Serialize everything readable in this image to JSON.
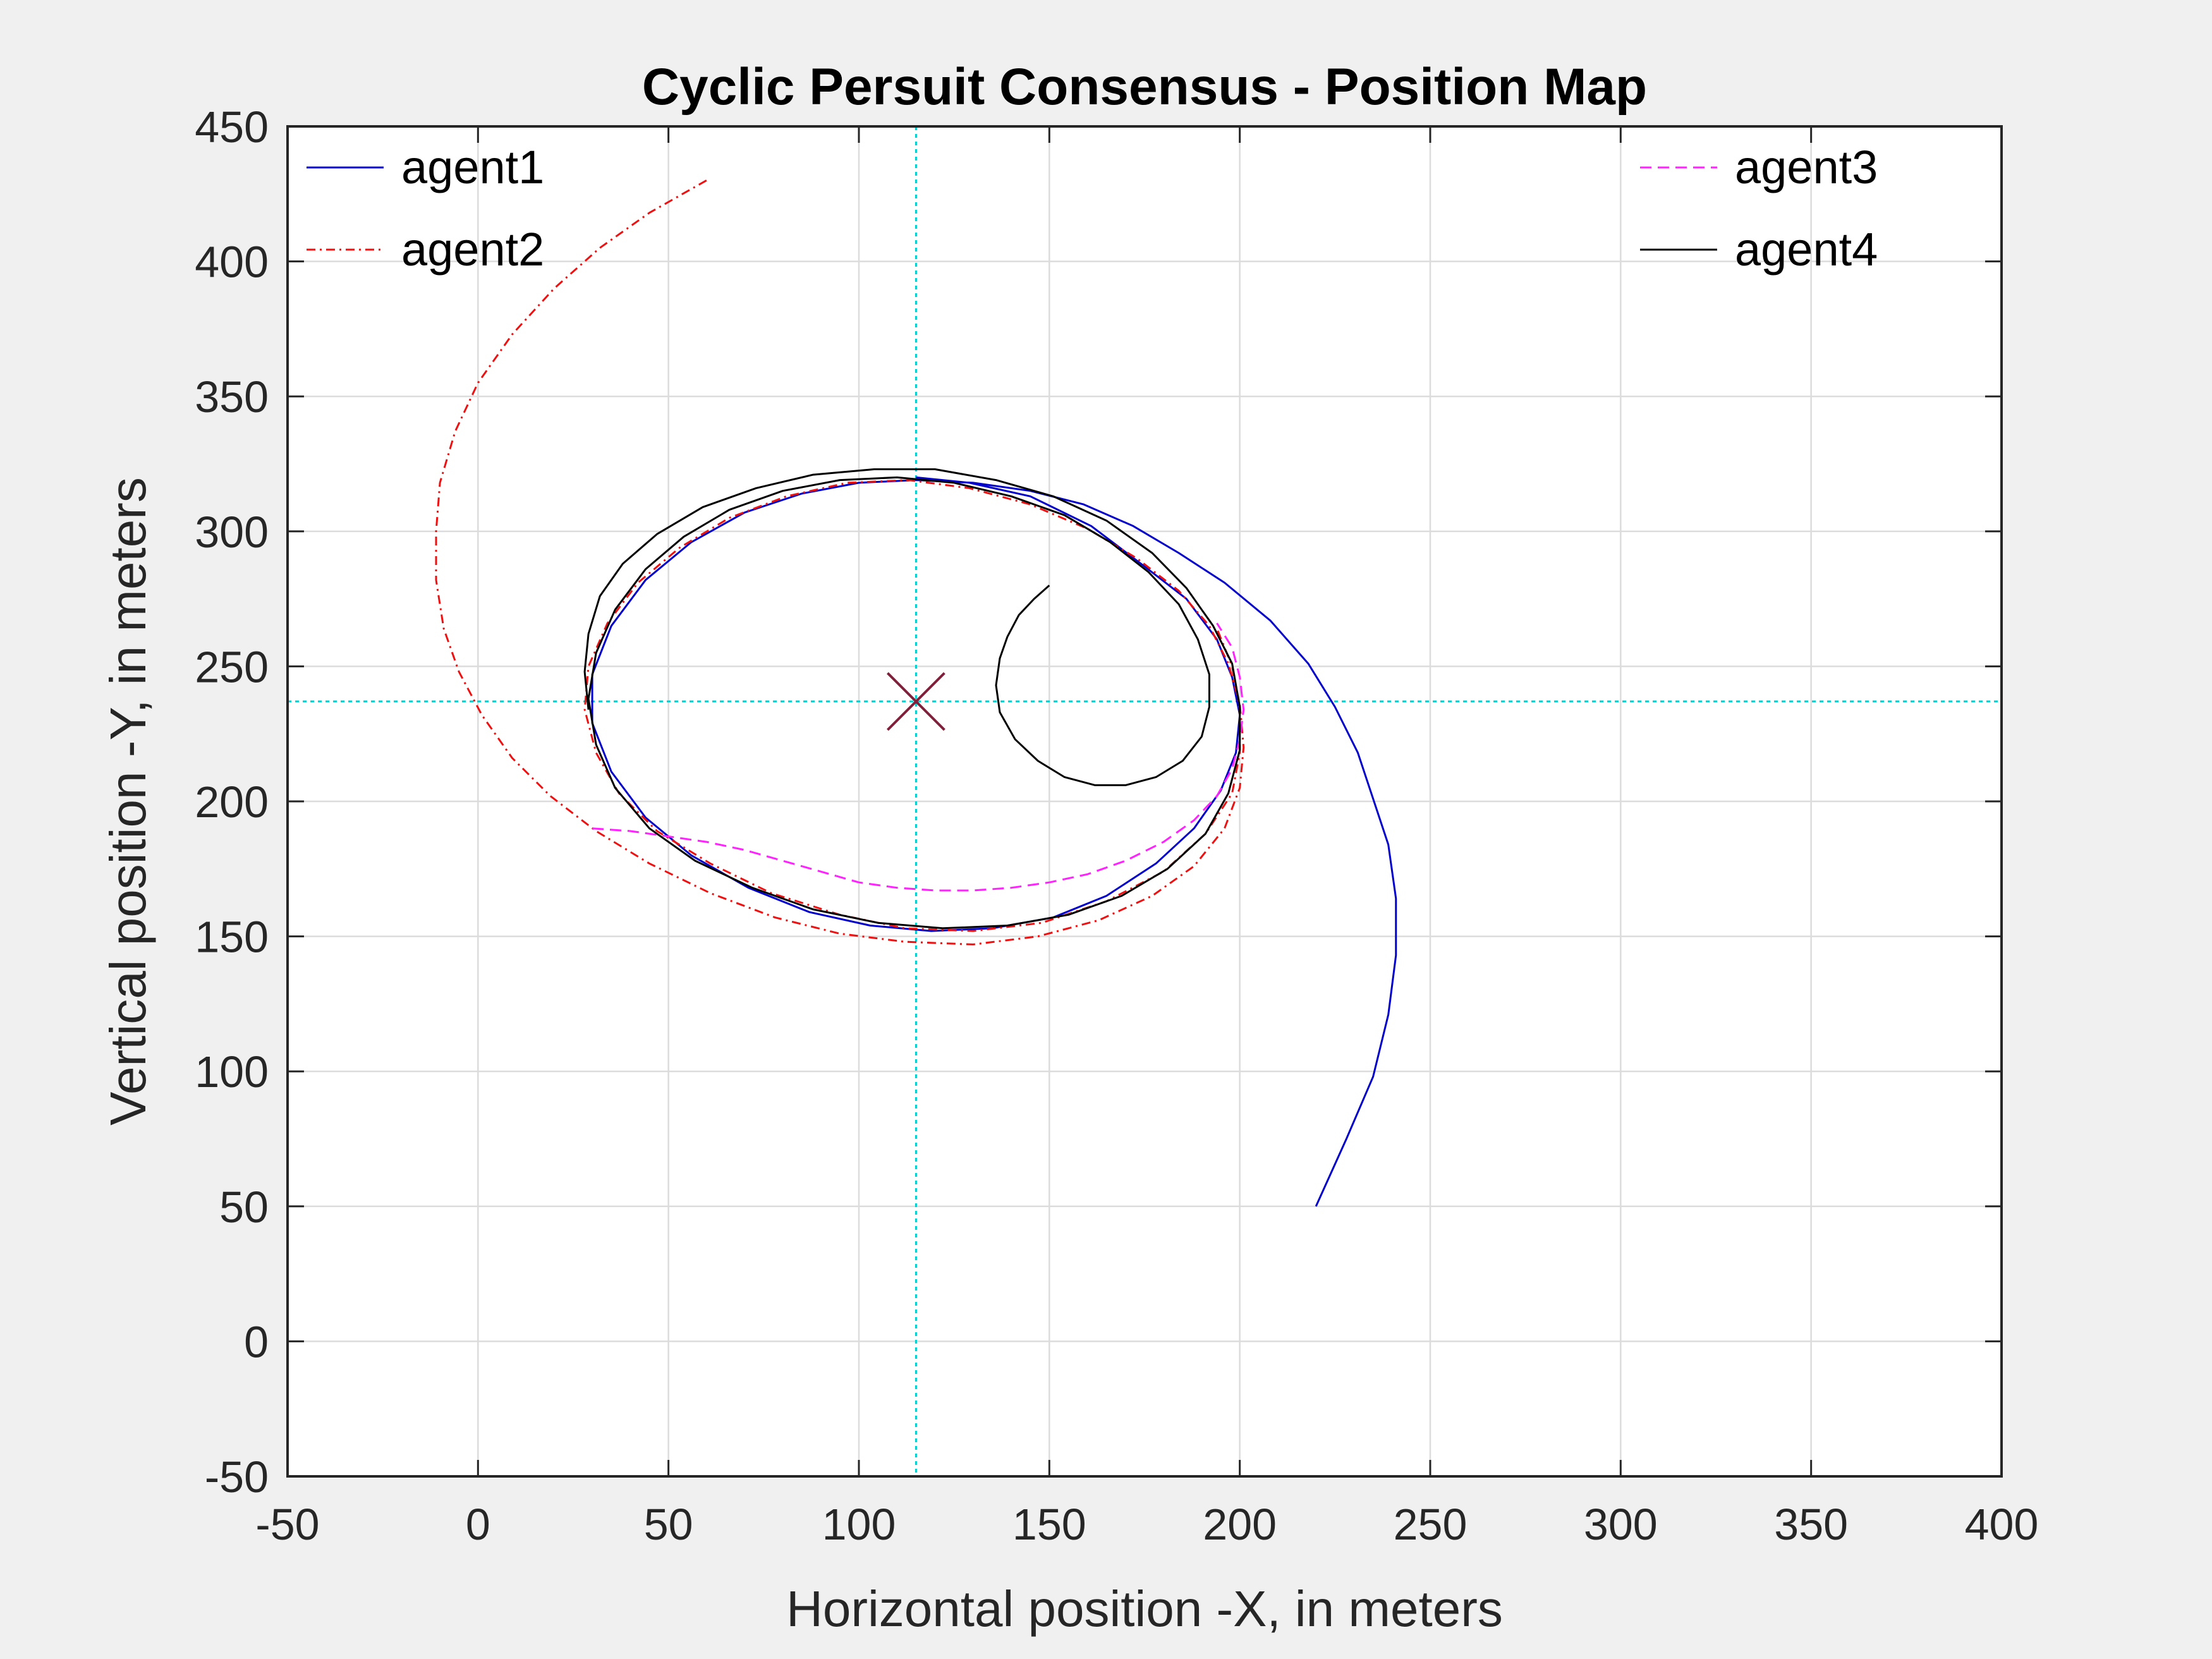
{
  "chart_data": {
    "type": "line",
    "title": "Cyclic Persuit Consensus - Position Map",
    "xlabel": "Horizontal position -X, in meters",
    "ylabel": "Vertical position -Y, in meters",
    "xlim": [
      -50,
      400
    ],
    "ylim": [
      -50,
      450
    ],
    "xticks": [
      -50,
      0,
      50,
      100,
      150,
      200,
      250,
      300,
      350,
      400
    ],
    "yticks": [
      -50,
      0,
      50,
      100,
      150,
      200,
      250,
      300,
      350,
      400,
      450
    ],
    "grid": true,
    "legend_left": [
      "agent1",
      "agent2"
    ],
    "legend_right": [
      "agent3",
      "agent4"
    ],
    "consensus_point": {
      "x": 115,
      "y": 237,
      "marker": "x",
      "color": "#7f1f3a"
    },
    "crosshair_color": "#00d0d0",
    "series": [
      {
        "name": "agent1",
        "color": "#0000cc",
        "dash": "solid",
        "points": [
          [
            220,
            50
          ],
          [
            228,
            75
          ],
          [
            235,
            98
          ],
          [
            239,
            121
          ],
          [
            241,
            143
          ],
          [
            241,
            164
          ],
          [
            239,
            184
          ],
          [
            235,
            201
          ],
          [
            231,
            218
          ],
          [
            225,
            235
          ],
          [
            218,
            251
          ],
          [
            208,
            267
          ],
          [
            196,
            281
          ],
          [
            184,
            292
          ],
          [
            172,
            302
          ],
          [
            159,
            310
          ],
          [
            145,
            315
          ],
          [
            130,
            318
          ],
          [
            115,
            319
          ],
          [
            100,
            318
          ],
          [
            85,
            314
          ],
          [
            70,
            307
          ],
          [
            56,
            296
          ],
          [
            44,
            282
          ],
          [
            35,
            265
          ],
          [
            30,
            247
          ],
          [
            30,
            229
          ],
          [
            35,
            211
          ],
          [
            44,
            194
          ],
          [
            56,
            180
          ],
          [
            71,
            168
          ],
          [
            87,
            159
          ],
          [
            103,
            154
          ],
          [
            119,
            152
          ],
          [
            135,
            153
          ],
          [
            151,
            157
          ],
          [
            165,
            165
          ],
          [
            178,
            177
          ],
          [
            188,
            190
          ],
          [
            195,
            204
          ],
          [
            199,
            218
          ],
          [
            200,
            232
          ],
          [
            198,
            246
          ],
          [
            194,
            260
          ],
          [
            186,
            275
          ],
          [
            175,
            287
          ],
          [
            161,
            302
          ],
          [
            145,
            313
          ],
          [
            129,
            318
          ],
          [
            115,
            320
          ]
        ]
      },
      {
        "name": "agent2",
        "color": "#ee1111",
        "dash": "dashdot",
        "points": [
          [
            60,
            430
          ],
          [
            45,
            418
          ],
          [
            32,
            405
          ],
          [
            20,
            390
          ],
          [
            9,
            373
          ],
          [
            0,
            355
          ],
          [
            -6,
            337
          ],
          [
            -10,
            318
          ],
          [
            -11,
            300
          ],
          [
            -11,
            282
          ],
          [
            -9,
            264
          ],
          [
            -5,
            248
          ],
          [
            1,
            232
          ],
          [
            9,
            216
          ],
          [
            19,
            202
          ],
          [
            31,
            189
          ],
          [
            45,
            177
          ],
          [
            61,
            166
          ],
          [
            78,
            157
          ],
          [
            95,
            151
          ],
          [
            112,
            148
          ],
          [
            130,
            147
          ],
          [
            147,
            150
          ],
          [
            163,
            156
          ],
          [
            177,
            165
          ],
          [
            188,
            176
          ],
          [
            196,
            190
          ],
          [
            200,
            205
          ],
          [
            201,
            220
          ],
          [
            200,
            236
          ],
          [
            197,
            251
          ],
          [
            192,
            265
          ],
          [
            184,
            278
          ],
          [
            173,
            290
          ],
          [
            160,
            301
          ],
          [
            145,
            310
          ],
          [
            129,
            316
          ],
          [
            113,
            319
          ],
          [
            97,
            318
          ],
          [
            81,
            313
          ],
          [
            66,
            305
          ],
          [
            53,
            294
          ],
          [
            42,
            281
          ],
          [
            34,
            266
          ],
          [
            29,
            250
          ],
          [
            28,
            234
          ],
          [
            31,
            218
          ],
          [
            37,
            203
          ],
          [
            47,
            189
          ],
          [
            61,
            177
          ],
          [
            77,
            166
          ],
          [
            95,
            158
          ],
          [
            112,
            153
          ],
          [
            130,
            152
          ],
          [
            148,
            155
          ],
          [
            165,
            163
          ],
          [
            180,
            174
          ],
          [
            191,
            188
          ],
          [
            198,
            203
          ],
          [
            200,
            218
          ],
          [
            200,
            234
          ],
          [
            198,
            250
          ],
          [
            194,
            264
          ]
        ]
      },
      {
        "name": "agent3",
        "color": "#ff22ff",
        "dash": "dashed",
        "points": [
          [
            30,
            190
          ],
          [
            40,
            189
          ],
          [
            50,
            187
          ],
          [
            60,
            185
          ],
          [
            70,
            182
          ],
          [
            80,
            178
          ],
          [
            90,
            174
          ],
          [
            100,
            170
          ],
          [
            110,
            168
          ],
          [
            120,
            167
          ],
          [
            130,
            167
          ],
          [
            140,
            168
          ],
          [
            150,
            170
          ],
          [
            160,
            173
          ],
          [
            170,
            178
          ],
          [
            180,
            185
          ],
          [
            188,
            193
          ],
          [
            194,
            202
          ],
          [
            198,
            212
          ],
          [
            200,
            223
          ],
          [
            201,
            234
          ],
          [
            200,
            246
          ],
          [
            198,
            257
          ],
          [
            194,
            266
          ]
        ]
      },
      {
        "name": "agent4",
        "color": "#000000",
        "dash": "solid",
        "points": [
          [
            150,
            280
          ],
          [
            146,
            275
          ],
          [
            142,
            269
          ],
          [
            139,
            261
          ],
          [
            137,
            253
          ],
          [
            136,
            243
          ],
          [
            137,
            233
          ],
          [
            141,
            223
          ],
          [
            147,
            215
          ],
          [
            154,
            209
          ],
          [
            162,
            206
          ],
          [
            170,
            206
          ],
          [
            178,
            209
          ],
          [
            185,
            215
          ],
          [
            190,
            224
          ],
          [
            192,
            235
          ],
          [
            192,
            247
          ],
          [
            189,
            260
          ],
          [
            184,
            273
          ],
          [
            176,
            285
          ],
          [
            166,
            296
          ],
          [
            154,
            306
          ],
          [
            140,
            313
          ],
          [
            125,
            318
          ],
          [
            110,
            320
          ],
          [
            95,
            319
          ],
          [
            80,
            315
          ],
          [
            66,
            308
          ],
          [
            54,
            298
          ],
          [
            44,
            286
          ],
          [
            36,
            271
          ],
          [
            31,
            255
          ],
          [
            29,
            238
          ],
          [
            31,
            221
          ],
          [
            36,
            205
          ],
          [
            45,
            190
          ],
          [
            57,
            178
          ],
          [
            72,
            168
          ],
          [
            88,
            160
          ],
          [
            105,
            155
          ],
          [
            122,
            153
          ],
          [
            139,
            154
          ],
          [
            155,
            158
          ],
          [
            169,
            165
          ],
          [
            181,
            175
          ],
          [
            191,
            188
          ],
          [
            197,
            203
          ],
          [
            200,
            219
          ],
          [
            200,
            235
          ],
          [
            198,
            251
          ],
          [
            193,
            265
          ],
          [
            186,
            279
          ],
          [
            177,
            292
          ],
          [
            165,
            304
          ],
          [
            151,
            313
          ],
          [
            136,
            319
          ],
          [
            120,
            323
          ],
          [
            104,
            323
          ],
          [
            88,
            321
          ],
          [
            73,
            316
          ],
          [
            59,
            309
          ],
          [
            47,
            299
          ],
          [
            38,
            288
          ],
          [
            32,
            276
          ],
          [
            29,
            262
          ],
          [
            28,
            248
          ],
          [
            29,
            234
          ]
        ]
      }
    ]
  }
}
